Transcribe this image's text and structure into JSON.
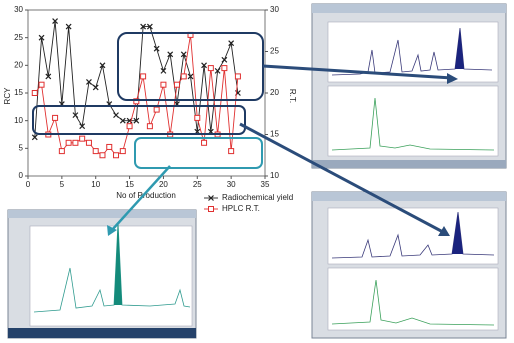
{
  "chart_data": {
    "type": "line",
    "xlabel": "No of Production",
    "ylabel": "RCY",
    "y2label": "R.T.",
    "x": [
      1,
      2,
      3,
      4,
      5,
      6,
      7,
      8,
      9,
      10,
      11,
      12,
      13,
      14,
      15,
      16,
      17,
      18,
      19,
      20,
      21,
      22,
      23,
      24,
      25,
      26,
      27,
      28,
      29,
      30,
      31
    ],
    "series": [
      {
        "name": "Radiochemical yield",
        "color": "#222222",
        "marker": "x",
        "values": [
          7,
          25,
          18,
          28,
          13,
          27,
          11,
          9,
          17,
          16,
          20,
          13,
          11,
          10,
          10,
          10,
          27,
          27,
          23,
          19,
          22,
          13,
          22,
          18,
          8,
          20,
          8,
          19,
          21,
          24,
          15
        ]
      },
      {
        "name": "HPLC R.T.",
        "color": "#e03030",
        "marker": "square",
        "axis": "y2",
        "values": [
          20,
          21,
          15,
          17,
          13,
          14,
          14,
          14.5,
          14,
          13,
          12.5,
          13.5,
          12.5,
          13,
          16,
          19,
          22,
          16,
          18,
          21,
          15,
          21,
          22,
          27,
          17,
          14,
          23,
          15,
          23,
          13,
          22
        ]
      }
    ],
    "xlim": [
      0,
      35
    ],
    "xticks": [
      0,
      5,
      10,
      15,
      20,
      25,
      30,
      35
    ],
    "ylim": [
      0,
      30
    ],
    "yticks": [
      0,
      5,
      10,
      15,
      20,
      25,
      30
    ],
    "y2lim": [
      10,
      30
    ],
    "y2ticks": [
      10,
      15,
      20,
      25,
      30
    ],
    "legend": "bottom-right"
  }
}
